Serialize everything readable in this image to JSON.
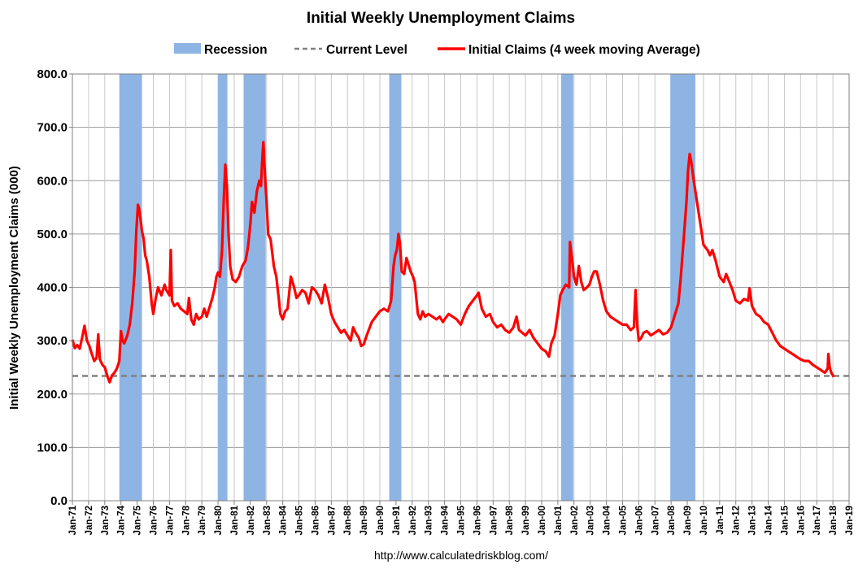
{
  "chart_data": {
    "type": "line",
    "title": "Initial Weekly Unemployment Claims",
    "ylabel": "Initial Weekly Unemployment Claims (000)",
    "xlabel": "",
    "source": "http://www.calculatedriskblog.com/",
    "ylim": [
      0,
      800
    ],
    "yticks": [
      "0.0",
      "100.0",
      "200.0",
      "300.0",
      "400.0",
      "500.0",
      "600.0",
      "700.0",
      "800.0"
    ],
    "xlim": [
      1971,
      2019
    ],
    "xticks": [
      "Jan-71",
      "Jan-72",
      "Jan-73",
      "Jan-74",
      "Jan-75",
      "Jan-76",
      "Jan-77",
      "Jan-78",
      "Jan-79",
      "Jan-80",
      "Jan-81",
      "Jan-82",
      "Jan-83",
      "Jan-84",
      "Jan-85",
      "Jan-86",
      "Jan-87",
      "Jan-88",
      "Jan-89",
      "Jan-90",
      "Jan-91",
      "Jan-92",
      "Jan-93",
      "Jan-94",
      "Jan-95",
      "Jan-96",
      "Jan-97",
      "Jan-98",
      "Jan-99",
      "Jan-00",
      "Jan-01",
      "Jan-02",
      "Jan-03",
      "Jan-04",
      "Jan-05",
      "Jan-06",
      "Jan-07",
      "Jan-08",
      "Jan-09",
      "Jan-10",
      "Jan-11",
      "Jan-12",
      "Jan-13",
      "Jan-14",
      "Jan-15",
      "Jan-16",
      "Jan-17",
      "Jan-18",
      "Jan-19"
    ],
    "grid": true,
    "legend_position": "top",
    "legend": [
      {
        "label": "Recession",
        "kind": "area",
        "color": "#8eb4e3"
      },
      {
        "label": "Current Level",
        "kind": "dashed-line",
        "color": "#808080"
      },
      {
        "label": "Initial Claims (4 week moving Average)",
        "kind": "line",
        "color": "#ff0000"
      }
    ],
    "recessions": [
      [
        1973.9,
        1975.3
      ],
      [
        1980.0,
        1980.58
      ],
      [
        1981.58,
        1982.95
      ],
      [
        1990.58,
        1991.33
      ],
      [
        2001.2,
        2001.95
      ],
      [
        2007.95,
        2009.5
      ]
    ],
    "current_level": 234,
    "series": [
      {
        "name": "Initial Claims (4 week moving Average)",
        "color": "#ff0000",
        "points": [
          [
            1971.0,
            302
          ],
          [
            1971.15,
            286
          ],
          [
            1971.3,
            292
          ],
          [
            1971.45,
            285
          ],
          [
            1971.6,
            305
          ],
          [
            1971.75,
            328
          ],
          [
            1971.9,
            300
          ],
          [
            1972.05,
            290
          ],
          [
            1972.2,
            275
          ],
          [
            1972.35,
            262
          ],
          [
            1972.5,
            268
          ],
          [
            1972.6,
            312
          ],
          [
            1972.7,
            265
          ],
          [
            1972.85,
            255
          ],
          [
            1973.0,
            250
          ],
          [
            1973.2,
            230
          ],
          [
            1973.3,
            222
          ],
          [
            1973.45,
            235
          ],
          [
            1973.6,
            240
          ],
          [
            1973.75,
            248
          ],
          [
            1973.9,
            262
          ],
          [
            1974.0,
            318
          ],
          [
            1974.1,
            300
          ],
          [
            1974.2,
            295
          ],
          [
            1974.4,
            310
          ],
          [
            1974.55,
            330
          ],
          [
            1974.7,
            370
          ],
          [
            1974.85,
            430
          ],
          [
            1974.95,
            505
          ],
          [
            1975.05,
            555
          ],
          [
            1975.12,
            548
          ],
          [
            1975.2,
            530
          ],
          [
            1975.3,
            505
          ],
          [
            1975.4,
            492
          ],
          [
            1975.5,
            460
          ],
          [
            1975.6,
            450
          ],
          [
            1975.75,
            420
          ],
          [
            1975.9,
            370
          ],
          [
            1976.0,
            350
          ],
          [
            1976.15,
            380
          ],
          [
            1976.3,
            400
          ],
          [
            1976.5,
            385
          ],
          [
            1976.7,
            405
          ],
          [
            1976.8,
            395
          ],
          [
            1977.0,
            385
          ],
          [
            1977.08,
            470
          ],
          [
            1977.15,
            375
          ],
          [
            1977.3,
            365
          ],
          [
            1977.5,
            370
          ],
          [
            1977.7,
            360
          ],
          [
            1977.9,
            355
          ],
          [
            1978.1,
            350
          ],
          [
            1978.2,
            380
          ],
          [
            1978.35,
            340
          ],
          [
            1978.5,
            330
          ],
          [
            1978.65,
            350
          ],
          [
            1978.8,
            340
          ],
          [
            1979.0,
            345
          ],
          [
            1979.15,
            360
          ],
          [
            1979.3,
            345
          ],
          [
            1979.5,
            365
          ],
          [
            1979.65,
            380
          ],
          [
            1979.8,
            400
          ],
          [
            1979.9,
            420
          ],
          [
            1980.0,
            428
          ],
          [
            1980.12,
            420
          ],
          [
            1980.25,
            470
          ],
          [
            1980.35,
            560
          ],
          [
            1980.45,
            630
          ],
          [
            1980.55,
            590
          ],
          [
            1980.65,
            500
          ],
          [
            1980.75,
            440
          ],
          [
            1980.9,
            415
          ],
          [
            1981.1,
            410
          ],
          [
            1981.3,
            420
          ],
          [
            1981.5,
            440
          ],
          [
            1981.7,
            450
          ],
          [
            1981.85,
            475
          ],
          [
            1982.0,
            520
          ],
          [
            1982.1,
            560
          ],
          [
            1982.25,
            540
          ],
          [
            1982.4,
            580
          ],
          [
            1982.55,
            600
          ],
          [
            1982.65,
            590
          ],
          [
            1982.75,
            650
          ],
          [
            1982.8,
            672
          ],
          [
            1982.9,
            610
          ],
          [
            1983.0,
            560
          ],
          [
            1983.1,
            500
          ],
          [
            1983.25,
            490
          ],
          [
            1983.45,
            440
          ],
          [
            1983.6,
            420
          ],
          [
            1983.75,
            380
          ],
          [
            1983.85,
            350
          ],
          [
            1984.0,
            340
          ],
          [
            1984.15,
            355
          ],
          [
            1984.3,
            360
          ],
          [
            1984.5,
            420
          ],
          [
            1984.7,
            400
          ],
          [
            1984.85,
            380
          ],
          [
            1985.0,
            385
          ],
          [
            1985.2,
            395
          ],
          [
            1985.4,
            390
          ],
          [
            1985.6,
            370
          ],
          [
            1985.8,
            400
          ],
          [
            1986.0,
            395
          ],
          [
            1986.2,
            385
          ],
          [
            1986.4,
            370
          ],
          [
            1986.6,
            405
          ],
          [
            1986.8,
            380
          ],
          [
            1987.0,
            350
          ],
          [
            1987.2,
            335
          ],
          [
            1987.4,
            325
          ],
          [
            1987.6,
            315
          ],
          [
            1987.8,
            320
          ],
          [
            1988.0,
            310
          ],
          [
            1988.2,
            300
          ],
          [
            1988.35,
            325
          ],
          [
            1988.5,
            315
          ],
          [
            1988.7,
            305
          ],
          [
            1988.85,
            290
          ],
          [
            1989.0,
            293
          ],
          [
            1989.25,
            315
          ],
          [
            1989.5,
            335
          ],
          [
            1989.75,
            345
          ],
          [
            1990.0,
            355
          ],
          [
            1990.25,
            360
          ],
          [
            1990.5,
            355
          ],
          [
            1990.7,
            375
          ],
          [
            1990.85,
            440
          ],
          [
            1990.95,
            460
          ],
          [
            1991.05,
            470
          ],
          [
            1991.15,
            500
          ],
          [
            1991.25,
            480
          ],
          [
            1991.35,
            430
          ],
          [
            1991.5,
            425
          ],
          [
            1991.65,
            455
          ],
          [
            1991.75,
            445
          ],
          [
            1991.9,
            430
          ],
          [
            1992.05,
            420
          ],
          [
            1992.15,
            410
          ],
          [
            1992.25,
            380
          ],
          [
            1992.35,
            350
          ],
          [
            1992.5,
            340
          ],
          [
            1992.65,
            355
          ],
          [
            1992.8,
            345
          ],
          [
            1993.0,
            350
          ],
          [
            1993.25,
            345
          ],
          [
            1993.5,
            340
          ],
          [
            1993.7,
            345
          ],
          [
            1993.9,
            335
          ],
          [
            1994.0,
            340
          ],
          [
            1994.25,
            350
          ],
          [
            1994.5,
            345
          ],
          [
            1994.75,
            340
          ],
          [
            1995.0,
            330
          ],
          [
            1995.25,
            350
          ],
          [
            1995.5,
            365
          ],
          [
            1995.75,
            375
          ],
          [
            1996.0,
            385
          ],
          [
            1996.1,
            390
          ],
          [
            1996.3,
            360
          ],
          [
            1996.55,
            345
          ],
          [
            1996.8,
            350
          ],
          [
            1997.0,
            335
          ],
          [
            1997.25,
            325
          ],
          [
            1997.5,
            330
          ],
          [
            1997.75,
            320
          ],
          [
            1998.0,
            315
          ],
          [
            1998.25,
            325
          ],
          [
            1998.45,
            345
          ],
          [
            1998.6,
            320
          ],
          [
            1998.8,
            315
          ],
          [
            1999.0,
            310
          ],
          [
            1999.25,
            320
          ],
          [
            1999.5,
            305
          ],
          [
            1999.75,
            295
          ],
          [
            2000.0,
            285
          ],
          [
            2000.25,
            280
          ],
          [
            2000.45,
            270
          ],
          [
            2000.6,
            295
          ],
          [
            2000.8,
            310
          ],
          [
            2001.0,
            350
          ],
          [
            2001.15,
            385
          ],
          [
            2001.3,
            395
          ],
          [
            2001.5,
            405
          ],
          [
            2001.7,
            400
          ],
          [
            2001.75,
            485
          ],
          [
            2001.85,
            460
          ],
          [
            2002.0,
            420
          ],
          [
            2002.15,
            405
          ],
          [
            2002.3,
            440
          ],
          [
            2002.45,
            410
          ],
          [
            2002.6,
            395
          ],
          [
            2002.8,
            400
          ],
          [
            2002.95,
            405
          ],
          [
            2003.1,
            420
          ],
          [
            2003.25,
            430
          ],
          [
            2003.4,
            430
          ],
          [
            2003.6,
            405
          ],
          [
            2003.8,
            375
          ],
          [
            2004.0,
            355
          ],
          [
            2004.25,
            345
          ],
          [
            2004.5,
            340
          ],
          [
            2004.75,
            335
          ],
          [
            2005.0,
            330
          ],
          [
            2005.25,
            330
          ],
          [
            2005.5,
            320
          ],
          [
            2005.7,
            325
          ],
          [
            2005.8,
            395
          ],
          [
            2005.9,
            330
          ],
          [
            2006.0,
            300
          ],
          [
            2006.15,
            305
          ],
          [
            2006.3,
            315
          ],
          [
            2006.5,
            318
          ],
          [
            2006.75,
            310
          ],
          [
            2007.0,
            315
          ],
          [
            2007.25,
            320
          ],
          [
            2007.5,
            312
          ],
          [
            2007.75,
            315
          ],
          [
            2008.0,
            325
          ],
          [
            2008.25,
            350
          ],
          [
            2008.45,
            370
          ],
          [
            2008.6,
            420
          ],
          [
            2008.8,
            500
          ],
          [
            2008.95,
            560
          ],
          [
            2009.05,
            620
          ],
          [
            2009.15,
            650
          ],
          [
            2009.25,
            635
          ],
          [
            2009.4,
            600
          ],
          [
            2009.55,
            570
          ],
          [
            2009.7,
            540
          ],
          [
            2009.85,
            510
          ],
          [
            2010.0,
            480
          ],
          [
            2010.25,
            470
          ],
          [
            2010.4,
            460
          ],
          [
            2010.55,
            470
          ],
          [
            2010.75,
            450
          ],
          [
            2011.0,
            420
          ],
          [
            2011.25,
            410
          ],
          [
            2011.4,
            425
          ],
          [
            2011.6,
            410
          ],
          [
            2011.8,
            395
          ],
          [
            2012.0,
            375
          ],
          [
            2012.25,
            370
          ],
          [
            2012.5,
            378
          ],
          [
            2012.75,
            375
          ],
          [
            2012.85,
            398
          ],
          [
            2013.0,
            365
          ],
          [
            2013.25,
            350
          ],
          [
            2013.5,
            345
          ],
          [
            2013.75,
            335
          ],
          [
            2014.0,
            330
          ],
          [
            2014.25,
            315
          ],
          [
            2014.5,
            300
          ],
          [
            2014.75,
            290
          ],
          [
            2015.0,
            285
          ],
          [
            2015.25,
            280
          ],
          [
            2015.5,
            275
          ],
          [
            2015.75,
            270
          ],
          [
            2016.0,
            265
          ],
          [
            2016.25,
            262
          ],
          [
            2016.5,
            262
          ],
          [
            2016.75,
            255
          ],
          [
            2017.0,
            250
          ],
          [
            2017.25,
            245
          ],
          [
            2017.5,
            240
          ],
          [
            2017.68,
            248
          ],
          [
            2017.72,
            275
          ],
          [
            2017.8,
            250
          ],
          [
            2017.9,
            240
          ],
          [
            2018.0,
            235
          ],
          [
            2018.05,
            232
          ]
        ]
      }
    ]
  }
}
